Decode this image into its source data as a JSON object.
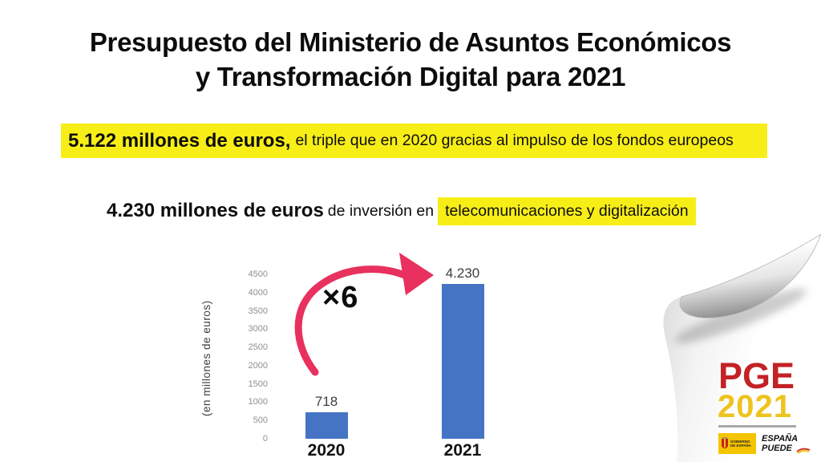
{
  "slide": {
    "title_line1": "Presupuesto del Ministerio de Asuntos Económicos",
    "title_line2": "y Transformación Digital para 2021",
    "headline": {
      "bold": "5.122 millones de euros,",
      "rest": "el triple que en 2020 gracias al impulso de los fondos europeos"
    },
    "subline": {
      "bold": "4.230 millones de euros",
      "mid": "de inversión en",
      "highlight": "telecomunicaciones y digitalización"
    }
  },
  "chart_data": {
    "type": "bar",
    "title": "",
    "categories": [
      "2020",
      "2021"
    ],
    "values": [
      718,
      4230
    ],
    "value_labels": [
      "718",
      "4.230"
    ],
    "xlabel": "",
    "ylabel": "(en millones de euros)",
    "yticks": [
      0,
      500,
      1000,
      1500,
      2000,
      2500,
      3000,
      3500,
      4000,
      4500
    ],
    "ylim": [
      0,
      4500
    ],
    "grid": false,
    "legend": false,
    "bar_color": "#4574c5",
    "annotation": {
      "text": "×6",
      "arrow_color": "#e8315e"
    }
  },
  "logo": {
    "program": "PGE",
    "year": "2021",
    "government_badge": "GOBIERNO DE ESPAÑA",
    "slogan_line1": "ESPAÑA",
    "slogan_line2": "PUEDE",
    "program_color": "#c32126",
    "year_color": "#eec31d",
    "badge_yellow": "#f5c400"
  },
  "colors": {
    "highlight_yellow": "#f7ee17",
    "background": "#ffffff",
    "text_black": "#0c0c0c"
  }
}
